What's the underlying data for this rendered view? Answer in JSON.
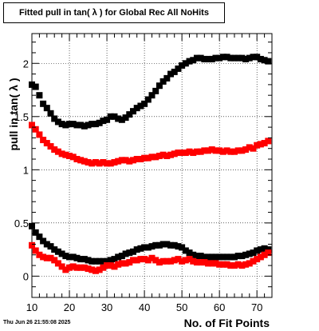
{
  "title": "Fitted pull in tan( λ ) for Global Rec All NoHits",
  "footer": "Thu Jun 26 21:55:08 2025",
  "chart_data": {
    "type": "scatter",
    "title": "Fitted pull in tan( λ ) for Global Rec All NoHits",
    "xlabel": "No. of Fit Points",
    "ylabel": "pull in tan( λ )",
    "xlim": [
      10,
      74
    ],
    "ylim": [
      -0.2,
      2.28
    ],
    "xticks": [
      10,
      20,
      30,
      40,
      50,
      60,
      70
    ],
    "yticks": [
      0,
      0.5,
      1,
      1.5,
      2
    ],
    "grid": true,
    "series": [
      {
        "color": "#000000",
        "marker": "square",
        "x": [
          10,
          11,
          12,
          13,
          14,
          15,
          16,
          17,
          18,
          19,
          20,
          21,
          22,
          23,
          24,
          25,
          26,
          27,
          28,
          29,
          30,
          31,
          32,
          33,
          34,
          35,
          36,
          37,
          38,
          39,
          40,
          41,
          42,
          43,
          44,
          45,
          46,
          47,
          48,
          49,
          50,
          51,
          52,
          53,
          54,
          55,
          56,
          57,
          58,
          59,
          60,
          61,
          62,
          63,
          64,
          65,
          66,
          67,
          68,
          69,
          70,
          71,
          72,
          73
        ],
        "y": [
          1.8,
          1.78,
          1.7,
          1.62,
          1.58,
          1.53,
          1.48,
          1.45,
          1.43,
          1.42,
          1.43,
          1.43,
          1.42,
          1.42,
          1.41,
          1.42,
          1.43,
          1.43,
          1.44,
          1.46,
          1.47,
          1.5,
          1.5,
          1.48,
          1.47,
          1.49,
          1.52,
          1.55,
          1.58,
          1.6,
          1.62,
          1.66,
          1.7,
          1.74,
          1.79,
          1.83,
          1.86,
          1.9,
          1.92,
          1.95,
          1.98,
          2.0,
          2.02,
          2.03,
          2.05,
          2.05,
          2.04,
          2.04,
          2.04,
          2.05,
          2.05,
          2.06,
          2.06,
          2.05,
          2.05,
          2.05,
          2.05,
          2.04,
          2.05,
          2.06,
          2.06,
          2.04,
          2.03,
          2.02
        ]
      },
      {
        "color": "#ff0000",
        "marker": "square",
        "x": [
          10,
          11,
          12,
          13,
          14,
          15,
          16,
          17,
          18,
          19,
          20,
          21,
          22,
          23,
          24,
          25,
          26,
          27,
          28,
          29,
          30,
          31,
          32,
          33,
          34,
          35,
          36,
          37,
          38,
          39,
          40,
          41,
          42,
          43,
          44,
          45,
          46,
          47,
          48,
          49,
          50,
          51,
          52,
          53,
          54,
          55,
          56,
          57,
          58,
          59,
          60,
          61,
          62,
          63,
          64,
          65,
          66,
          67,
          68,
          69,
          70,
          71,
          72,
          73
        ],
        "y": [
          1.42,
          1.38,
          1.33,
          1.28,
          1.25,
          1.22,
          1.19,
          1.17,
          1.15,
          1.14,
          1.13,
          1.12,
          1.1,
          1.09,
          1.08,
          1.07,
          1.06,
          1.07,
          1.06,
          1.07,
          1.06,
          1.06,
          1.07,
          1.08,
          1.09,
          1.09,
          1.08,
          1.09,
          1.1,
          1.1,
          1.11,
          1.11,
          1.12,
          1.12,
          1.13,
          1.14,
          1.13,
          1.14,
          1.15,
          1.16,
          1.16,
          1.16,
          1.17,
          1.16,
          1.17,
          1.17,
          1.18,
          1.18,
          1.19,
          1.18,
          1.18,
          1.17,
          1.18,
          1.17,
          1.17,
          1.18,
          1.18,
          1.19,
          1.21,
          1.2,
          1.23,
          1.24,
          1.25,
          1.27
        ]
      },
      {
        "color": "#000000",
        "marker": "square",
        "x": [
          10,
          11,
          12,
          13,
          14,
          15,
          16,
          17,
          18,
          19,
          20,
          21,
          22,
          23,
          24,
          25,
          26,
          27,
          28,
          29,
          30,
          31,
          32,
          33,
          34,
          35,
          36,
          37,
          38,
          39,
          40,
          41,
          42,
          43,
          44,
          45,
          46,
          47,
          48,
          49,
          50,
          51,
          52,
          53,
          54,
          55,
          56,
          57,
          58,
          59,
          60,
          61,
          62,
          63,
          64,
          65,
          66,
          67,
          68,
          69,
          70,
          71,
          72,
          73
        ],
        "y": [
          0.47,
          0.41,
          0.37,
          0.33,
          0.3,
          0.28,
          0.25,
          0.23,
          0.21,
          0.19,
          0.18,
          0.18,
          0.17,
          0.16,
          0.16,
          0.15,
          0.14,
          0.14,
          0.14,
          0.14,
          0.14,
          0.15,
          0.16,
          0.18,
          0.19,
          0.21,
          0.22,
          0.23,
          0.25,
          0.26,
          0.27,
          0.27,
          0.28,
          0.29,
          0.29,
          0.3,
          0.3,
          0.29,
          0.29,
          0.28,
          0.27,
          0.24,
          0.22,
          0.2,
          0.19,
          0.19,
          0.18,
          0.18,
          0.18,
          0.18,
          0.18,
          0.18,
          0.18,
          0.18,
          0.18,
          0.19,
          0.19,
          0.2,
          0.21,
          0.22,
          0.24,
          0.25,
          0.26,
          0.25
        ]
      },
      {
        "color": "#ff0000",
        "marker": "square",
        "x": [
          10,
          11,
          12,
          13,
          14,
          15,
          16,
          17,
          18,
          19,
          20,
          21,
          22,
          23,
          24,
          25,
          26,
          27,
          28,
          29,
          30,
          31,
          32,
          33,
          34,
          35,
          36,
          37,
          38,
          39,
          40,
          41,
          42,
          43,
          44,
          45,
          46,
          47,
          48,
          49,
          50,
          51,
          52,
          53,
          54,
          55,
          56,
          57,
          58,
          59,
          60,
          61,
          62,
          63,
          64,
          65,
          66,
          67,
          68,
          69,
          70,
          71,
          72,
          73
        ],
        "y": [
          0.29,
          0.24,
          0.2,
          0.18,
          0.17,
          0.17,
          0.15,
          0.12,
          0.09,
          0.06,
          0.08,
          0.09,
          0.08,
          0.08,
          0.08,
          0.07,
          0.06,
          0.05,
          0.06,
          0.08,
          0.1,
          0.1,
          0.09,
          0.11,
          0.12,
          0.12,
          0.13,
          0.15,
          0.15,
          0.16,
          0.16,
          0.15,
          0.17,
          0.15,
          0.13,
          0.14,
          0.14,
          0.14,
          0.15,
          0.16,
          0.14,
          0.15,
          0.16,
          0.14,
          0.13,
          0.13,
          0.13,
          0.12,
          0.12,
          0.12,
          0.11,
          0.11,
          0.11,
          0.1,
          0.1,
          0.11,
          0.1,
          0.11,
          0.12,
          0.14,
          0.16,
          0.18,
          0.2,
          0.22
        ]
      }
    ]
  }
}
